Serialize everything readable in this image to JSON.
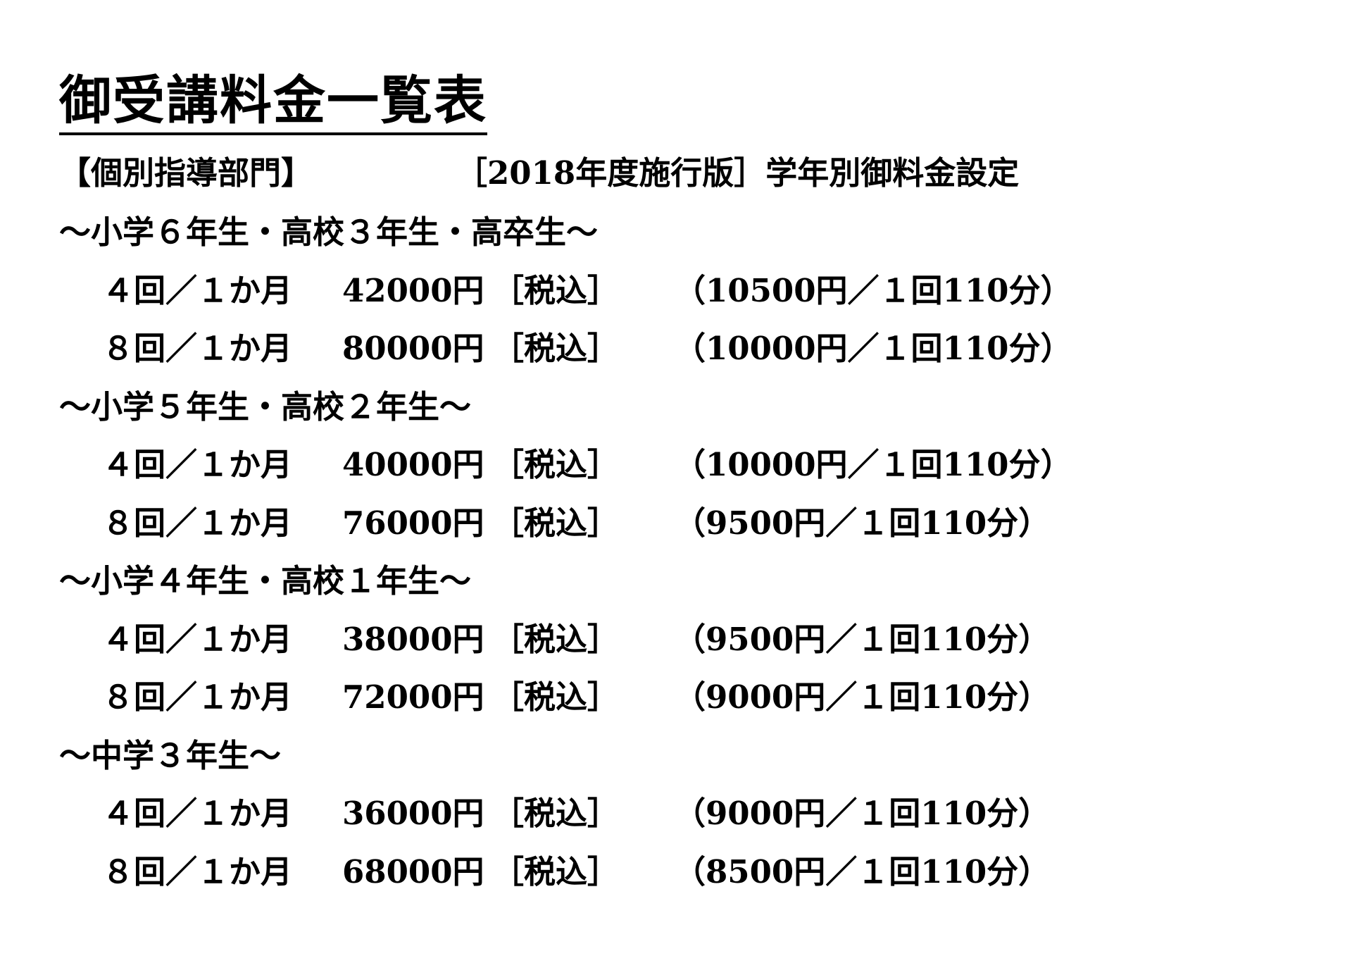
{
  "title": "御受講料金一覧表",
  "header": {
    "department": "【個別指導部門】",
    "edition": "［2018年度施行版］学年別御料金設定"
  },
  "sections": [
    {
      "heading": "～小学６年生・高校３年生・高卒生～",
      "rows": [
        {
          "plan": "４回／１か月",
          "price": "42000円",
          "tax": "［税込］",
          "per": "（10500円／１回110分）"
        },
        {
          "plan": "８回／１か月",
          "price": "80000円",
          "tax": "［税込］",
          "per": "（10000円／１回110分）"
        }
      ]
    },
    {
      "heading": "～小学５年生・高校２年生～",
      "rows": [
        {
          "plan": "４回／１か月",
          "price": "40000円",
          "tax": "［税込］",
          "per": "（10000円／１回110分）"
        },
        {
          "plan": "８回／１か月",
          "price": "76000円",
          "tax": "［税込］",
          "per": "（9500円／１回110分）"
        }
      ]
    },
    {
      "heading": "～小学４年生・高校１年生～",
      "rows": [
        {
          "plan": "４回／１か月",
          "price": "38000円",
          "tax": "［税込］",
          "per": "（9500円／１回110分）"
        },
        {
          "plan": "８回／１か月",
          "price": "72000円",
          "tax": "［税込］",
          "per": "（9000円／１回110分）"
        }
      ]
    },
    {
      "heading": "～中学３年生～",
      "rows": [
        {
          "plan": "４回／１か月",
          "price": "36000円",
          "tax": "［税込］",
          "per": "（9000円／１回110分）"
        },
        {
          "plan": "８回／１か月",
          "price": "68000円",
          "tax": "［税込］",
          "per": "（8500円／１回110分）"
        }
      ]
    }
  ]
}
